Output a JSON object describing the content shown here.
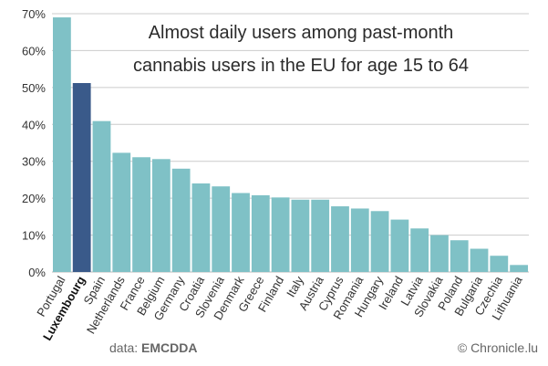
{
  "chart_data": {
    "type": "bar",
    "title": [
      "Almost daily users among past-month",
      "cannabis users in the EU for age 15 to 64"
    ],
    "categories": [
      "Portugal",
      "Luxembourg",
      "Spain",
      "Netherlands",
      "France",
      "Belgium",
      "Germany",
      "Croatia",
      "Slovenia",
      "Denmark",
      "Greece",
      "Finland",
      "Italy",
      "Austria",
      "Cyprus",
      "Romania",
      "Hungary",
      "Ireland",
      "Latvia",
      "Slovakia",
      "Poland",
      "Bulgaria",
      "Czechia",
      "Lithuania"
    ],
    "values": [
      69.0,
      51.2,
      40.9,
      32.3,
      31.1,
      30.6,
      28.0,
      24.0,
      23.2,
      21.4,
      20.8,
      20.2,
      19.6,
      19.6,
      17.8,
      17.2,
      16.5,
      14.2,
      11.8,
      10.0,
      8.6,
      6.3,
      4.4,
      1.9
    ],
    "highlight": "Luxembourg",
    "yticks": [
      "0%",
      "10%",
      "20%",
      "30%",
      "40%",
      "50%",
      "60%",
      "70%"
    ],
    "ylim": [
      0,
      70
    ],
    "grid": true,
    "colors": {
      "bar": "#7fc1c6",
      "highlight": "#3a5a8a",
      "grid": "#cccccc"
    }
  },
  "footer": {
    "source_prefix": "data: ",
    "source_name": "EMCDDA",
    "credit": "© Chronicle.lu"
  }
}
